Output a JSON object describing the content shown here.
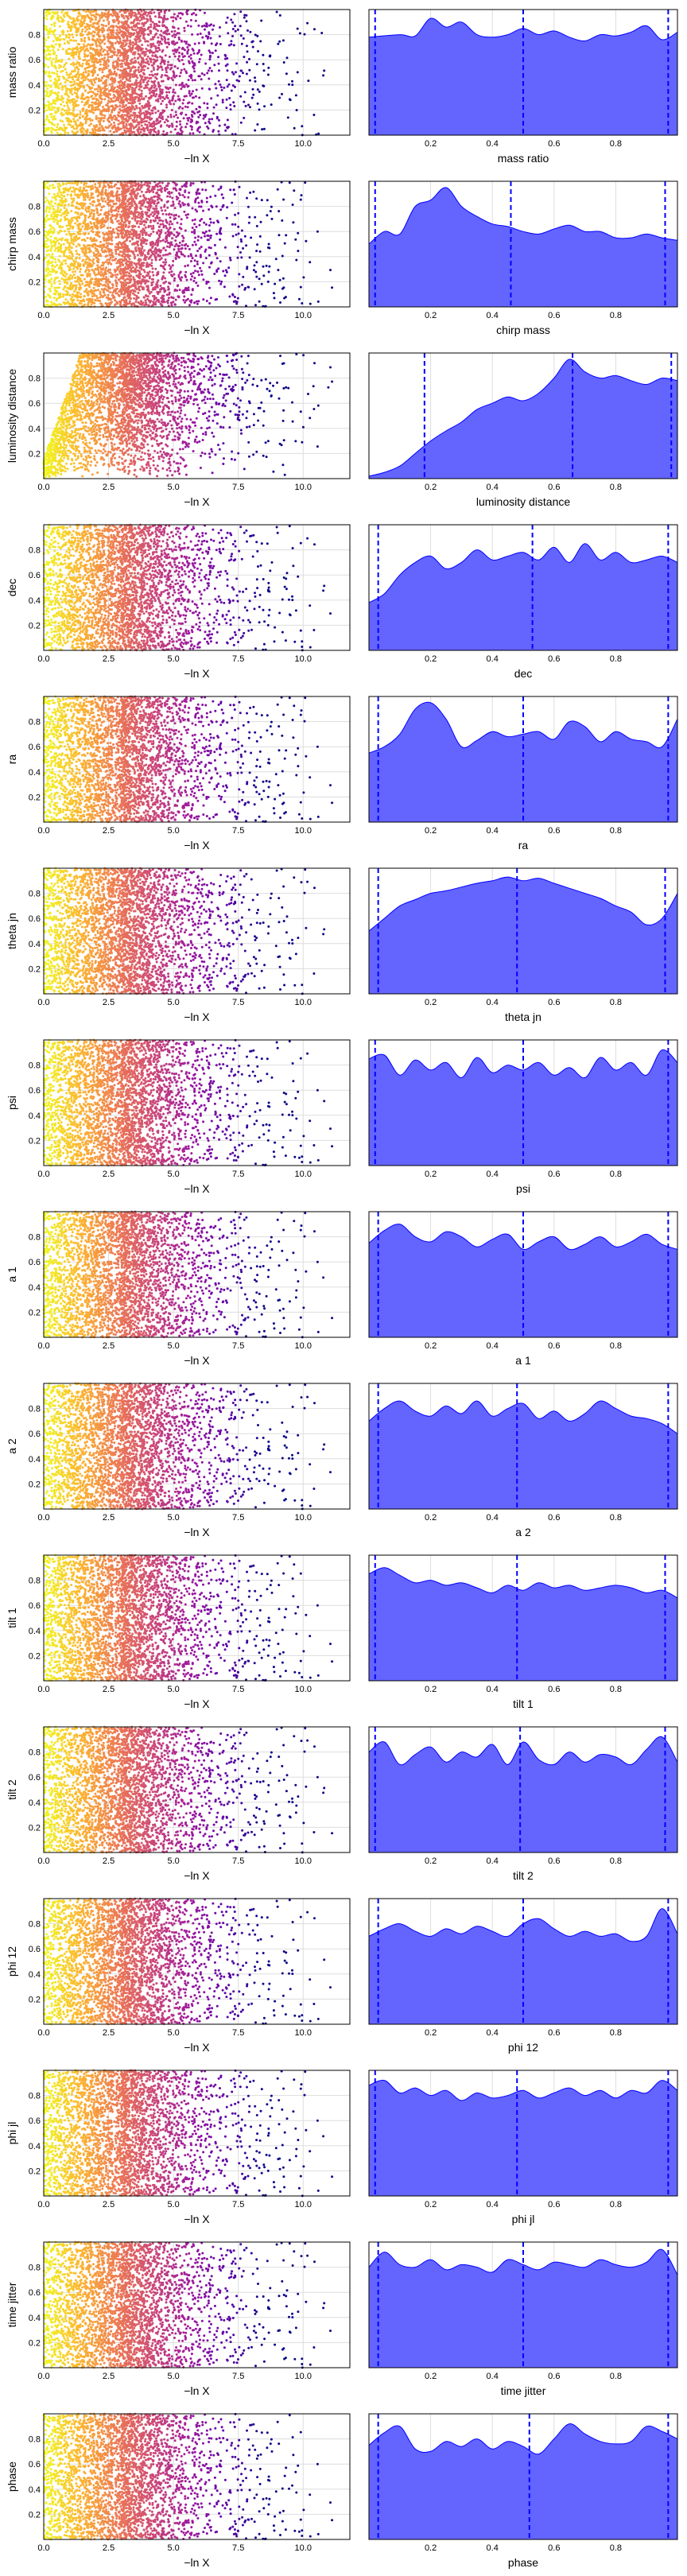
{
  "figure": {
    "colors": {
      "density_fill": "#6464ff",
      "density_edge": "#0000ff",
      "quantile_line": "#0000ff",
      "grid": "#dddddd",
      "frame": "#000000",
      "colormap": [
        "#f0f921",
        "#fdb42f",
        "#ed7953",
        "#cc4778",
        "#9c179e",
        "#5c01a6",
        "#0d0887"
      ]
    },
    "trace_xlabel": "−ln X",
    "trace_xticks": [
      "0.0",
      "2.5",
      "5.0",
      "7.5",
      "10.0"
    ],
    "trace_xticks_values": [
      0,
      2.5,
      5,
      7.5,
      10
    ],
    "trace_yticks": [
      "0.2",
      "0.4",
      "0.6",
      "0.8"
    ],
    "trace_yticks_values": [
      0.2,
      0.4,
      0.6,
      0.8
    ],
    "dens_xticks": [
      "0.2",
      "0.4",
      "0.6",
      "0.8"
    ],
    "dens_xticks_values": [
      0.2,
      0.4,
      0.6,
      0.8
    ]
  },
  "chart_data": [
    {
      "type": "scatter",
      "param": "mass ratio",
      "xlabel": "−ln X",
      "ylabel": "mass ratio",
      "xlim": [
        0,
        11.8
      ],
      "ylim": [
        0,
        1
      ],
      "points": 3200,
      "color_by": "−ln X"
    },
    {
      "type": "area",
      "param": "mass ratio",
      "xlabel": "mass ratio",
      "xlim": [
        0,
        1
      ],
      "x": [
        0.0,
        0.1,
        0.15,
        0.2,
        0.25,
        0.3,
        0.35,
        0.4,
        0.45,
        0.5,
        0.55,
        0.6,
        0.65,
        0.7,
        0.75,
        0.8,
        0.85,
        0.9,
        0.95,
        1.0
      ],
      "y": [
        0.78,
        0.8,
        0.79,
        0.93,
        0.86,
        0.9,
        0.8,
        0.78,
        0.8,
        0.85,
        0.8,
        0.83,
        0.78,
        0.75,
        0.8,
        0.79,
        0.82,
        0.87,
        0.76,
        0.82
      ],
      "quantiles": [
        0.02,
        0.5,
        0.97
      ]
    },
    {
      "type": "scatter",
      "param": "chirp mass",
      "xlabel": "−ln X",
      "ylabel": "chirp mass",
      "xlim": [
        0,
        11.8
      ],
      "ylim": [
        0,
        1
      ],
      "points": 3200,
      "color_by": "−ln X"
    },
    {
      "type": "area",
      "param": "chirp mass",
      "xlabel": "chirp mass",
      "xlim": [
        0,
        1
      ],
      "x": [
        0.0,
        0.05,
        0.1,
        0.15,
        0.2,
        0.25,
        0.3,
        0.35,
        0.4,
        0.45,
        0.5,
        0.55,
        0.6,
        0.65,
        0.7,
        0.75,
        0.8,
        0.85,
        0.9,
        0.95,
        1.0
      ],
      "y": [
        0.5,
        0.6,
        0.58,
        0.8,
        0.85,
        0.95,
        0.8,
        0.72,
        0.66,
        0.64,
        0.6,
        0.58,
        0.62,
        0.65,
        0.6,
        0.6,
        0.55,
        0.55,
        0.58,
        0.55,
        0.53
      ],
      "quantiles": [
        0.02,
        0.46,
        0.96
      ]
    },
    {
      "type": "scatter",
      "param": "luminosity distance",
      "xlabel": "−ln X",
      "ylabel": "luminosity distance",
      "xlim": [
        0,
        11.8
      ],
      "ylim": [
        0,
        1
      ],
      "points": 3200,
      "color_by": "−ln X"
    },
    {
      "type": "area",
      "param": "luminosity distance",
      "xlabel": "luminosity distance",
      "xlim": [
        0,
        1
      ],
      "x": [
        0.0,
        0.05,
        0.1,
        0.15,
        0.2,
        0.25,
        0.3,
        0.35,
        0.4,
        0.45,
        0.5,
        0.55,
        0.6,
        0.65,
        0.7,
        0.75,
        0.8,
        0.85,
        0.9,
        0.95,
        1.0
      ],
      "y": [
        0.02,
        0.05,
        0.1,
        0.2,
        0.3,
        0.38,
        0.45,
        0.55,
        0.6,
        0.65,
        0.62,
        0.68,
        0.8,
        0.95,
        0.85,
        0.8,
        0.82,
        0.78,
        0.75,
        0.8,
        0.78
      ],
      "quantiles": [
        0.18,
        0.66,
        0.98
      ]
    },
    {
      "type": "scatter",
      "param": "dec",
      "xlabel": "−ln X",
      "ylabel": "dec",
      "xlim": [
        0,
        11.8
      ],
      "ylim": [
        0,
        1
      ],
      "points": 3200,
      "color_by": "−ln X"
    },
    {
      "type": "area",
      "param": "dec",
      "xlabel": "dec",
      "xlim": [
        0,
        1
      ],
      "x": [
        0.0,
        0.05,
        0.1,
        0.15,
        0.2,
        0.25,
        0.3,
        0.35,
        0.4,
        0.45,
        0.5,
        0.55,
        0.6,
        0.65,
        0.7,
        0.75,
        0.8,
        0.85,
        0.9,
        0.95,
        1.0
      ],
      "y": [
        0.38,
        0.45,
        0.6,
        0.7,
        0.75,
        0.65,
        0.7,
        0.8,
        0.72,
        0.75,
        0.78,
        0.72,
        0.82,
        0.7,
        0.85,
        0.72,
        0.78,
        0.7,
        0.72,
        0.75,
        0.7
      ],
      "quantiles": [
        0.03,
        0.53,
        0.97
      ]
    },
    {
      "type": "scatter",
      "param": "ra",
      "xlabel": "−ln X",
      "ylabel": "ra",
      "xlim": [
        0,
        11.8
      ],
      "ylim": [
        0,
        1
      ],
      "points": 3200,
      "color_by": "−ln X"
    },
    {
      "type": "area",
      "param": "ra",
      "xlabel": "ra",
      "xlim": [
        0,
        1
      ],
      "x": [
        0.0,
        0.05,
        0.1,
        0.15,
        0.2,
        0.25,
        0.3,
        0.35,
        0.4,
        0.45,
        0.5,
        0.55,
        0.6,
        0.65,
        0.7,
        0.75,
        0.8,
        0.85,
        0.9,
        0.95,
        1.0
      ],
      "y": [
        0.55,
        0.6,
        0.7,
        0.9,
        0.95,
        0.82,
        0.6,
        0.65,
        0.72,
        0.68,
        0.7,
        0.72,
        0.66,
        0.8,
        0.76,
        0.64,
        0.72,
        0.66,
        0.64,
        0.6,
        0.82
      ],
      "quantiles": [
        0.03,
        0.5,
        0.97
      ]
    },
    {
      "type": "scatter",
      "param": "theta jn",
      "xlabel": "−ln X",
      "ylabel": "theta jn",
      "xlim": [
        0,
        11.8
      ],
      "ylim": [
        0,
        1
      ],
      "points": 3200,
      "color_by": "−ln X"
    },
    {
      "type": "area",
      "param": "theta jn",
      "xlabel": "theta jn",
      "xlim": [
        0,
        1
      ],
      "x": [
        0.0,
        0.05,
        0.1,
        0.15,
        0.2,
        0.25,
        0.3,
        0.35,
        0.4,
        0.45,
        0.5,
        0.55,
        0.6,
        0.65,
        0.7,
        0.75,
        0.8,
        0.85,
        0.9,
        0.95,
        1.0
      ],
      "y": [
        0.5,
        0.6,
        0.7,
        0.75,
        0.8,
        0.82,
        0.85,
        0.88,
        0.9,
        0.93,
        0.9,
        0.92,
        0.88,
        0.84,
        0.8,
        0.76,
        0.7,
        0.65,
        0.55,
        0.6,
        0.8
      ],
      "quantiles": [
        0.03,
        0.48,
        0.96
      ]
    },
    {
      "type": "scatter",
      "param": "psi",
      "xlabel": "−ln X",
      "ylabel": "psi",
      "xlim": [
        0,
        11.8
      ],
      "ylim": [
        0,
        1
      ],
      "points": 3200,
      "color_by": "−ln X"
    },
    {
      "type": "area",
      "param": "psi",
      "xlabel": "psi",
      "xlim": [
        0,
        1
      ],
      "x": [
        0.0,
        0.05,
        0.1,
        0.15,
        0.2,
        0.25,
        0.3,
        0.35,
        0.4,
        0.45,
        0.5,
        0.55,
        0.6,
        0.65,
        0.7,
        0.75,
        0.8,
        0.85,
        0.9,
        0.95,
        1.0
      ],
      "y": [
        0.85,
        0.88,
        0.72,
        0.84,
        0.76,
        0.82,
        0.7,
        0.86,
        0.74,
        0.8,
        0.76,
        0.82,
        0.72,
        0.78,
        0.7,
        0.86,
        0.76,
        0.82,
        0.72,
        0.92,
        0.82
      ],
      "quantiles": [
        0.02,
        0.5,
        0.97
      ]
    },
    {
      "type": "scatter",
      "param": "a 1",
      "xlabel": "−ln X",
      "ylabel": "a 1",
      "xlim": [
        0,
        11.8
      ],
      "ylim": [
        0,
        1
      ],
      "points": 3200,
      "color_by": "−ln X"
    },
    {
      "type": "area",
      "param": "a 1",
      "xlabel": "a 1",
      "xlim": [
        0,
        1
      ],
      "x": [
        0.0,
        0.05,
        0.1,
        0.15,
        0.2,
        0.25,
        0.3,
        0.35,
        0.4,
        0.45,
        0.5,
        0.55,
        0.6,
        0.65,
        0.7,
        0.75,
        0.8,
        0.85,
        0.9,
        0.95,
        1.0
      ],
      "y": [
        0.75,
        0.85,
        0.9,
        0.8,
        0.76,
        0.84,
        0.8,
        0.72,
        0.78,
        0.82,
        0.7,
        0.76,
        0.8,
        0.7,
        0.74,
        0.8,
        0.72,
        0.76,
        0.82,
        0.74,
        0.7
      ],
      "quantiles": [
        0.03,
        0.5,
        0.97
      ]
    },
    {
      "type": "scatter",
      "param": "a 2",
      "xlabel": "−ln X",
      "ylabel": "a 2",
      "xlim": [
        0,
        11.8
      ],
      "ylim": [
        0,
        1
      ],
      "points": 3200,
      "color_by": "−ln X"
    },
    {
      "type": "area",
      "param": "a 2",
      "xlabel": "a 2",
      "xlim": [
        0,
        1
      ],
      "x": [
        0.0,
        0.05,
        0.1,
        0.15,
        0.2,
        0.25,
        0.3,
        0.35,
        0.4,
        0.45,
        0.5,
        0.55,
        0.6,
        0.65,
        0.7,
        0.75,
        0.8,
        0.85,
        0.9,
        0.95,
        1.0
      ],
      "y": [
        0.7,
        0.8,
        0.86,
        0.78,
        0.74,
        0.82,
        0.76,
        0.86,
        0.74,
        0.8,
        0.84,
        0.72,
        0.78,
        0.7,
        0.76,
        0.86,
        0.8,
        0.74,
        0.72,
        0.68,
        0.6
      ],
      "quantiles": [
        0.03,
        0.48,
        0.97
      ]
    },
    {
      "type": "scatter",
      "param": "tilt 1",
      "xlabel": "−ln X",
      "ylabel": "tilt 1",
      "xlim": [
        0,
        11.8
      ],
      "ylim": [
        0,
        1
      ],
      "points": 3200,
      "color_by": "−ln X"
    },
    {
      "type": "area",
      "param": "tilt 1",
      "xlabel": "tilt 1",
      "xlim": [
        0,
        1
      ],
      "x": [
        0.0,
        0.05,
        0.1,
        0.15,
        0.2,
        0.25,
        0.3,
        0.35,
        0.4,
        0.45,
        0.5,
        0.55,
        0.6,
        0.65,
        0.7,
        0.75,
        0.8,
        0.85,
        0.9,
        0.95,
        1.0
      ],
      "y": [
        0.85,
        0.9,
        0.84,
        0.78,
        0.8,
        0.76,
        0.78,
        0.74,
        0.7,
        0.76,
        0.72,
        0.78,
        0.74,
        0.76,
        0.72,
        0.74,
        0.76,
        0.74,
        0.7,
        0.72,
        0.66
      ],
      "quantiles": [
        0.02,
        0.48,
        0.96
      ]
    },
    {
      "type": "scatter",
      "param": "tilt 2",
      "xlabel": "−ln X",
      "ylabel": "tilt 2",
      "xlim": [
        0,
        11.8
      ],
      "ylim": [
        0,
        1
      ],
      "points": 3200,
      "color_by": "−ln X"
    },
    {
      "type": "area",
      "param": "tilt 2",
      "xlabel": "tilt 2",
      "xlim": [
        0,
        1
      ],
      "x": [
        0.0,
        0.05,
        0.1,
        0.15,
        0.2,
        0.25,
        0.3,
        0.35,
        0.4,
        0.45,
        0.5,
        0.55,
        0.6,
        0.65,
        0.7,
        0.75,
        0.8,
        0.85,
        0.9,
        0.95,
        1.0
      ],
      "y": [
        0.8,
        0.88,
        0.7,
        0.78,
        0.84,
        0.72,
        0.8,
        0.76,
        0.86,
        0.7,
        0.88,
        0.74,
        0.7,
        0.8,
        0.72,
        0.78,
        0.76,
        0.7,
        0.82,
        0.92,
        0.72
      ],
      "quantiles": [
        0.02,
        0.49,
        0.96
      ]
    },
    {
      "type": "scatter",
      "param": "phi 12",
      "xlabel": "−ln X",
      "ylabel": "phi 12",
      "xlim": [
        0,
        11.8
      ],
      "ylim": [
        0,
        1
      ],
      "points": 3200,
      "color_by": "−ln X"
    },
    {
      "type": "area",
      "param": "phi 12",
      "xlabel": "phi 12",
      "xlim": [
        0,
        1
      ],
      "x": [
        0.0,
        0.05,
        0.1,
        0.15,
        0.2,
        0.25,
        0.3,
        0.35,
        0.4,
        0.45,
        0.5,
        0.55,
        0.6,
        0.65,
        0.7,
        0.75,
        0.8,
        0.85,
        0.9,
        0.95,
        1.0
      ],
      "y": [
        0.7,
        0.76,
        0.8,
        0.74,
        0.7,
        0.76,
        0.72,
        0.78,
        0.74,
        0.7,
        0.8,
        0.84,
        0.76,
        0.7,
        0.74,
        0.7,
        0.72,
        0.66,
        0.7,
        0.92,
        0.72
      ],
      "quantiles": [
        0.03,
        0.5,
        0.97
      ]
    },
    {
      "type": "scatter",
      "param": "phi jl",
      "xlabel": "−ln X",
      "ylabel": "phi jl",
      "xlim": [
        0,
        11.8
      ],
      "ylim": [
        0,
        1
      ],
      "points": 3200,
      "color_by": "−ln X"
    },
    {
      "type": "area",
      "param": "phi jl",
      "xlabel": "phi jl",
      "xlim": [
        0,
        1
      ],
      "x": [
        0.0,
        0.05,
        0.1,
        0.15,
        0.2,
        0.25,
        0.3,
        0.35,
        0.4,
        0.45,
        0.5,
        0.55,
        0.6,
        0.65,
        0.7,
        0.75,
        0.8,
        0.85,
        0.9,
        0.95,
        1.0
      ],
      "y": [
        0.88,
        0.92,
        0.82,
        0.86,
        0.8,
        0.84,
        0.76,
        0.82,
        0.78,
        0.8,
        0.84,
        0.78,
        0.82,
        0.86,
        0.8,
        0.84,
        0.78,
        0.84,
        0.82,
        0.92,
        0.84
      ],
      "quantiles": [
        0.02,
        0.48,
        0.97
      ]
    },
    {
      "type": "scatter",
      "param": "time jitter",
      "xlabel": "−ln X",
      "ylabel": "time jitter",
      "xlim": [
        0,
        11.8
      ],
      "ylim": [
        0,
        1
      ],
      "points": 3200,
      "color_by": "−ln X"
    },
    {
      "type": "area",
      "param": "time jitter",
      "xlabel": "time jitter",
      "xlim": [
        0,
        1
      ],
      "x": [
        0.0,
        0.05,
        0.1,
        0.15,
        0.2,
        0.25,
        0.3,
        0.35,
        0.4,
        0.45,
        0.5,
        0.55,
        0.6,
        0.65,
        0.7,
        0.75,
        0.8,
        0.85,
        0.9,
        0.95,
        1.0
      ],
      "y": [
        0.8,
        0.92,
        0.82,
        0.8,
        0.86,
        0.78,
        0.82,
        0.8,
        0.76,
        0.86,
        0.82,
        0.78,
        0.84,
        0.82,
        0.8,
        0.86,
        0.82,
        0.8,
        0.84,
        0.94,
        0.74
      ],
      "quantiles": [
        0.03,
        0.5,
        0.97
      ]
    },
    {
      "type": "scatter",
      "param": "phase",
      "xlabel": "−ln X",
      "ylabel": "phase",
      "xlim": [
        0,
        11.8
      ],
      "ylim": [
        0,
        1
      ],
      "points": 3200,
      "color_by": "−ln X"
    },
    {
      "type": "area",
      "param": "phase",
      "xlabel": "phase",
      "xlim": [
        0,
        1
      ],
      "x": [
        0.0,
        0.05,
        0.1,
        0.15,
        0.2,
        0.25,
        0.3,
        0.35,
        0.4,
        0.45,
        0.5,
        0.55,
        0.6,
        0.65,
        0.7,
        0.75,
        0.8,
        0.85,
        0.9,
        0.95,
        1.0
      ],
      "y": [
        0.75,
        0.85,
        0.9,
        0.72,
        0.7,
        0.78,
        0.74,
        0.8,
        0.72,
        0.78,
        0.74,
        0.68,
        0.8,
        0.92,
        0.84,
        0.78,
        0.76,
        0.78,
        0.9,
        0.86,
        0.8
      ],
      "quantiles": [
        0.03,
        0.52,
        0.97
      ]
    }
  ]
}
